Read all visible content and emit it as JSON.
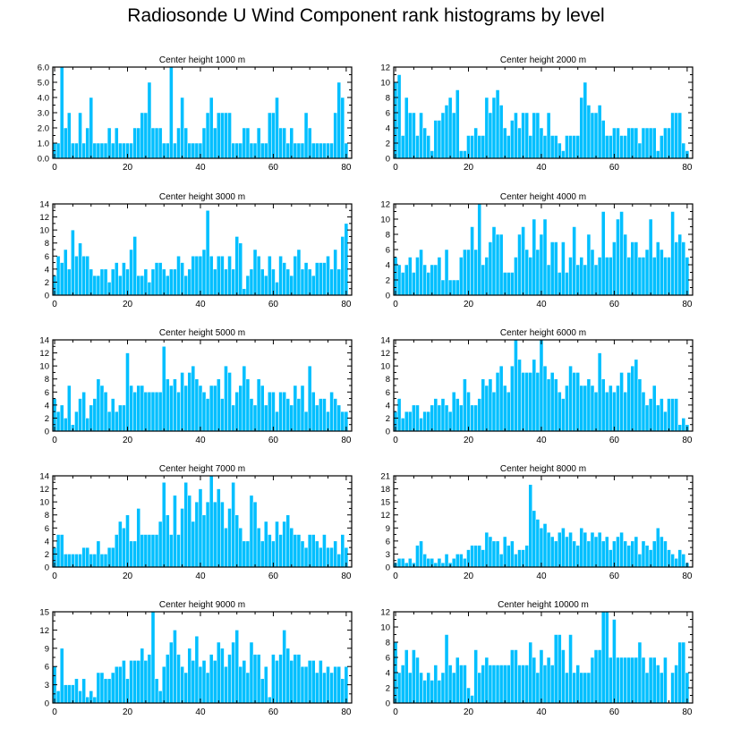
{
  "figure": {
    "title": "Radiosonde U Wind Component rank histograms by level"
  },
  "style": {
    "bar_color": "#00bfff",
    "bar_edge": "#ffffff",
    "axis_color": "#000000"
  },
  "chart_data": [
    {
      "type": "bar",
      "title": "Center height 1000 m",
      "x_ticks": [
        0,
        20,
        40,
        60,
        80
      ],
      "xlim": [
        -0.5,
        81.5
      ],
      "ylim": [
        0,
        6
      ],
      "y_ticks": [
        "0.0",
        "1.0",
        "2.0",
        "3.0",
        "4.0",
        "5.0",
        "6.0"
      ],
      "values": [
        1,
        1,
        6,
        2,
        3,
        1,
        1,
        3,
        1,
        2,
        4,
        1,
        1,
        1,
        1,
        2,
        1,
        2,
        1,
        1,
        1,
        1,
        2,
        2,
        3,
        3,
        5,
        2,
        2,
        2,
        1,
        1,
        6,
        1,
        2,
        4,
        2,
        1,
        1,
        1,
        1,
        2,
        3,
        4,
        2,
        3,
        3,
        3,
        3,
        1,
        1,
        1,
        2,
        2,
        1,
        1,
        2,
        1,
        1,
        3,
        3,
        4,
        2,
        2,
        1,
        2,
        1,
        1,
        1,
        3,
        2,
        1,
        1,
        1,
        1,
        1,
        1,
        3,
        5,
        4,
        1
      ]
    },
    {
      "type": "bar",
      "title": "Center height 2000 m",
      "x_ticks": [
        0,
        20,
        40,
        60,
        80
      ],
      "xlim": [
        -0.5,
        81.5
      ],
      "ylim": [
        0,
        12
      ],
      "y_ticks": [
        "0",
        "2",
        "4",
        "6",
        "8",
        "10",
        "12"
      ],
      "values": [
        10,
        11,
        3,
        8,
        6,
        6,
        3,
        6,
        4,
        3,
        1,
        5,
        5,
        6,
        7,
        8,
        6,
        9,
        1,
        1,
        3,
        3,
        4,
        3,
        3,
        8,
        6,
        8,
        9,
        7,
        4,
        3,
        5,
        6,
        4,
        6,
        6,
        3,
        6,
        6,
        4,
        3,
        6,
        3,
        3,
        2,
        1,
        3,
        3,
        3,
        3,
        8,
        10,
        7,
        6,
        6,
        7,
        5,
        3,
        3,
        4,
        4,
        3,
        3,
        4,
        4,
        4,
        2,
        4,
        4,
        4,
        4,
        1,
        3,
        4,
        4,
        6,
        6,
        6,
        2,
        1
      ]
    },
    {
      "type": "bar",
      "title": "Center height 3000 m",
      "x_ticks": [
        0,
        20,
        40,
        60,
        80
      ],
      "xlim": [
        -0.5,
        81.5
      ],
      "ylim": [
        0,
        14
      ],
      "y_ticks": [
        "0",
        "2",
        "4",
        "6",
        "8",
        "10",
        "12",
        "14"
      ],
      "values": [
        3,
        6,
        5,
        7,
        4,
        10,
        6,
        8,
        6,
        6,
        4,
        3,
        3,
        4,
        4,
        2,
        4,
        5,
        3,
        5,
        4,
        7,
        9,
        3,
        3,
        4,
        2,
        4,
        5,
        5,
        4,
        3,
        4,
        4,
        6,
        5,
        3,
        4,
        6,
        6,
        6,
        7,
        13,
        6,
        4,
        6,
        6,
        4,
        6,
        4,
        9,
        8,
        1,
        3,
        4,
        7,
        6,
        4,
        3,
        6,
        4,
        2,
        6,
        5,
        4,
        3,
        6,
        7,
        4,
        5,
        4,
        3,
        5,
        5,
        5,
        6,
        4,
        7,
        4,
        9,
        11
      ]
    },
    {
      "type": "bar",
      "title": "Center height 4000 m",
      "x_ticks": [
        0,
        20,
        40,
        60,
        80
      ],
      "xlim": [
        -0.5,
        81.5
      ],
      "ylim": [
        0,
        12
      ],
      "y_ticks": [
        "0",
        "2",
        "4",
        "6",
        "8",
        "10",
        "12"
      ],
      "values": [
        5,
        4,
        3,
        4,
        5,
        3,
        5,
        6,
        4,
        3,
        4,
        4,
        5,
        2,
        6,
        2,
        2,
        2,
        5,
        6,
        6,
        9,
        6,
        12,
        4,
        5,
        7,
        9,
        8,
        8,
        3,
        3,
        3,
        5,
        8,
        9,
        6,
        5,
        10,
        6,
        8,
        10,
        4,
        7,
        7,
        3,
        7,
        3,
        5,
        9,
        4,
        5,
        4,
        8,
        6,
        4,
        5,
        11,
        5,
        5,
        7,
        10,
        11,
        8,
        5,
        7,
        7,
        5,
        5,
        6,
        10,
        5,
        7,
        6,
        5,
        5,
        11,
        7,
        8,
        7,
        5
      ]
    },
    {
      "type": "bar",
      "title": "Center height 5000 m",
      "x_ticks": [
        0,
        20,
        40,
        60,
        80
      ],
      "xlim": [
        -0.5,
        81.5
      ],
      "ylim": [
        0,
        14
      ],
      "y_ticks": [
        "0",
        "2",
        "4",
        "6",
        "8",
        "10",
        "12",
        "14"
      ],
      "values": [
        5,
        3,
        4,
        2,
        7,
        1,
        3,
        5,
        6,
        2,
        4,
        5,
        8,
        7,
        6,
        3,
        5,
        3,
        4,
        4,
        12,
        7,
        6,
        7,
        7,
        6,
        6,
        6,
        6,
        6,
        13,
        8,
        7,
        8,
        6,
        9,
        7,
        9,
        10,
        8,
        7,
        6,
        5,
        7,
        7,
        8,
        5,
        10,
        9,
        4,
        6,
        7,
        10,
        8,
        5,
        4,
        8,
        7,
        4,
        6,
        6,
        3,
        6,
        6,
        5,
        4,
        7,
        5,
        7,
        3,
        10,
        6,
        4,
        5,
        5,
        3,
        6,
        5,
        4,
        3,
        3
      ]
    },
    {
      "type": "bar",
      "title": "Center height 6000 m",
      "x_ticks": [
        0,
        20,
        40,
        60,
        80
      ],
      "xlim": [
        -0.5,
        81.5
      ],
      "ylim": [
        0,
        14
      ],
      "y_ticks": [
        "0",
        "2",
        "4",
        "6",
        "8",
        "10",
        "12",
        "14"
      ],
      "values": [
        3,
        5,
        2,
        3,
        3,
        4,
        4,
        2,
        3,
        3,
        4,
        5,
        4,
        5,
        4,
        3,
        6,
        5,
        4,
        8,
        6,
        4,
        4,
        5,
        8,
        7,
        8,
        6,
        9,
        10,
        7,
        6,
        10,
        14,
        11,
        9,
        9,
        9,
        11,
        9,
        14,
        10,
        8,
        9,
        8,
        6,
        5,
        7,
        10,
        9,
        9,
        7,
        7,
        8,
        7,
        6,
        12,
        8,
        6,
        7,
        6,
        7,
        9,
        6,
        9,
        10,
        11,
        8,
        6,
        4,
        5,
        7,
        4,
        5,
        3,
        5,
        5,
        5,
        1,
        2,
        1
      ]
    },
    {
      "type": "bar",
      "title": "Center height 7000 m",
      "x_ticks": [
        0,
        20,
        40,
        60,
        80
      ],
      "xlim": [
        -0.5,
        81.5
      ],
      "ylim": [
        0,
        14
      ],
      "y_ticks": [
        "0",
        "2",
        "4",
        "6",
        "8",
        "10",
        "12",
        "14"
      ],
      "values": [
        3,
        5,
        5,
        2,
        2,
        2,
        2,
        2,
        3,
        3,
        2,
        2,
        4,
        2,
        2,
        3,
        3,
        5,
        7,
        6,
        8,
        4,
        4,
        9,
        5,
        5,
        5,
        5,
        5,
        7,
        13,
        8,
        5,
        11,
        5,
        9,
        13,
        11,
        7,
        10,
        12,
        8,
        10,
        14,
        10,
        12,
        10,
        6,
        9,
        13,
        8,
        6,
        4,
        4,
        11,
        10,
        6,
        4,
        7,
        5,
        4,
        7,
        5,
        7,
        8,
        6,
        5,
        5,
        4,
        3,
        5,
        5,
        4,
        3,
        5,
        3,
        3,
        4,
        2,
        5,
        3
      ]
    },
    {
      "type": "bar",
      "title": "Center height 8000 m",
      "x_ticks": [
        0,
        20,
        40,
        60,
        80
      ],
      "xlim": [
        -0.5,
        81.5
      ],
      "ylim": [
        0,
        21
      ],
      "y_ticks": [
        "0",
        "3",
        "6",
        "9",
        "12",
        "15",
        "18",
        "21"
      ],
      "values": [
        1,
        2,
        2,
        1,
        2,
        1,
        5,
        6,
        3,
        2,
        2,
        1,
        2,
        1,
        3,
        1,
        2,
        3,
        3,
        2,
        4,
        5,
        5,
        5,
        4,
        8,
        7,
        6,
        6,
        3,
        7,
        5,
        6,
        3,
        4,
        4,
        5,
        19,
        13,
        11,
        9,
        10,
        8,
        7,
        6,
        8,
        9,
        7,
        8,
        6,
        5,
        9,
        8,
        6,
        8,
        7,
        8,
        6,
        7,
        4,
        6,
        7,
        8,
        6,
        5,
        6,
        7,
        3,
        6,
        5,
        4,
        6,
        9,
        7,
        6,
        4,
        3,
        2,
        4,
        3,
        1
      ]
    },
    {
      "type": "bar",
      "title": "Center height 9000 m",
      "x_ticks": [
        0,
        20,
        40,
        60,
        80
      ],
      "xlim": [
        -0.5,
        81.5
      ],
      "ylim": [
        0,
        15
      ],
      "y_ticks": [
        "0",
        "3",
        "6",
        "9",
        "12",
        "15"
      ],
      "values": [
        6,
        2,
        9,
        3,
        3,
        3,
        4,
        2,
        4,
        1,
        2,
        1,
        5,
        5,
        4,
        4,
        5,
        6,
        6,
        7,
        4,
        7,
        7,
        7,
        9,
        7,
        8,
        15,
        4,
        2,
        6,
        8,
        10,
        12,
        8,
        6,
        5,
        9,
        7,
        11,
        6,
        7,
        5,
        8,
        7,
        10,
        9,
        6,
        8,
        10,
        12,
        6,
        7,
        5,
        10,
        8,
        8,
        4,
        6,
        1,
        8,
        7,
        8,
        12,
        9,
        7,
        8,
        8,
        6,
        6,
        7,
        7,
        5,
        7,
        5,
        6,
        5,
        6,
        6,
        4,
        6
      ]
    },
    {
      "type": "bar",
      "title": "Center height 10000 m",
      "x_ticks": [
        0,
        20,
        40,
        60,
        80
      ],
      "xlim": [
        -0.5,
        81.5
      ],
      "ylim": [
        0,
        12
      ],
      "y_ticks": [
        "0",
        "2",
        "4",
        "6",
        "8",
        "10",
        "12"
      ],
      "values": [
        8,
        4,
        5,
        7,
        4,
        7,
        6,
        4,
        3,
        4,
        3,
        5,
        3,
        4,
        9,
        5,
        4,
        6,
        5,
        5,
        2,
        1,
        7,
        4,
        5,
        6,
        5,
        5,
        5,
        5,
        5,
        5,
        7,
        7,
        5,
        5,
        5,
        8,
        6,
        4,
        7,
        5,
        6,
        5,
        9,
        9,
        7,
        4,
        9,
        4,
        5,
        4,
        4,
        4,
        6,
        7,
        7,
        12,
        12,
        6,
        11,
        6,
        6,
        6,
        6,
        6,
        6,
        8,
        6,
        4,
        6,
        6,
        5,
        4,
        6,
        0,
        4,
        5,
        8,
        8,
        4
      ]
    }
  ]
}
